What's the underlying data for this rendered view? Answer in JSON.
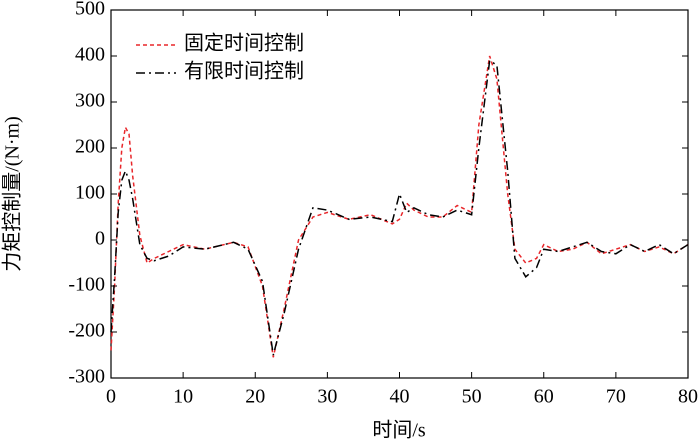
{
  "chart_data": {
    "type": "line",
    "xlabel": "时间/s",
    "ylabel": "力矩控制量/(N·m)",
    "x": [
      0,
      0.5,
      1,
      1.5,
      2,
      2.5,
      3,
      4,
      5,
      6,
      8,
      10,
      13,
      17,
      19,
      21,
      22.5,
      24,
      26,
      28,
      30,
      33,
      36,
      39,
      40,
      41,
      42,
      44,
      46,
      48,
      50,
      51,
      52.5,
      53.5,
      55,
      56,
      57.5,
      59,
      60,
      62,
      64,
      66,
      68,
      70,
      72,
      74,
      76,
      78,
      80
    ],
    "series": [
      {
        "name": "固定时间控制",
        "color": "#e8262a",
        "dash": "dashed",
        "values": [
          -240,
          -100,
          80,
          200,
          245,
          230,
          140,
          10,
          -50,
          -40,
          -25,
          -10,
          -20,
          -5,
          -15,
          -100,
          -255,
          -150,
          0,
          50,
          60,
          45,
          55,
          35,
          45,
          80,
          65,
          50,
          50,
          75,
          60,
          250,
          400,
          350,
          100,
          -20,
          -50,
          -40,
          -10,
          -25,
          -20,
          -5,
          -30,
          -20,
          -10,
          -25,
          -15,
          -30,
          -10
        ]
      },
      {
        "name": "有限时间控制",
        "color": "#000000",
        "dash": "dashdot",
        "values": [
          -200,
          -80,
          60,
          130,
          150,
          130,
          90,
          -10,
          -40,
          -45,
          -35,
          -15,
          -20,
          -5,
          -20,
          -90,
          -250,
          -160,
          -20,
          70,
          65,
          45,
          50,
          40,
          100,
          60,
          70,
          55,
          50,
          65,
          55,
          200,
          390,
          380,
          150,
          -40,
          -80,
          -60,
          -20,
          -25,
          -15,
          -5,
          -25,
          -30,
          -10,
          -25,
          -10,
          -30,
          -10
        ]
      }
    ],
    "xlim": [
      0,
      80
    ],
    "xticks": [
      0,
      10,
      20,
      30,
      40,
      50,
      60,
      70,
      80
    ],
    "ylim": [
      -300,
      500
    ],
    "yticks": [
      -300,
      -200,
      -100,
      0,
      100,
      200,
      300,
      400,
      500
    ],
    "legend": "upper left"
  }
}
